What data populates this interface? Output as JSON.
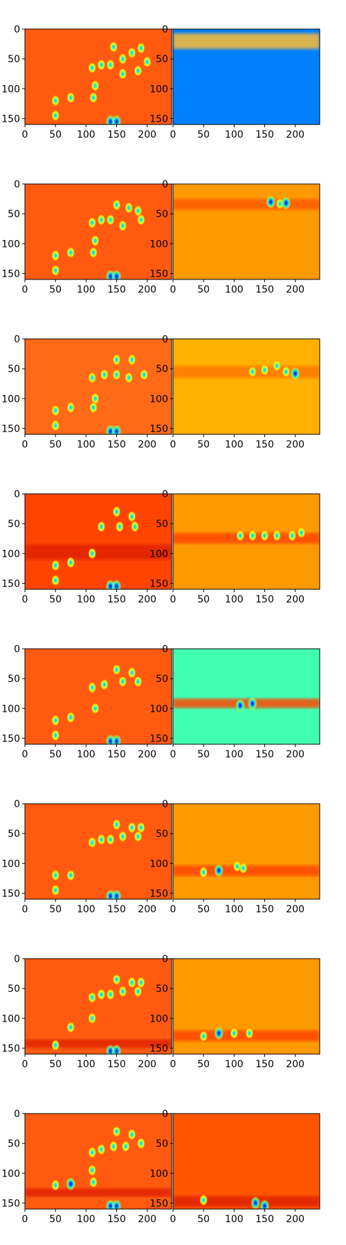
{
  "chart_data": {
    "type": "heatmap",
    "layout": "8 rows x 2 columns of image panels",
    "colormap": "jet",
    "grid": false,
    "xlim": [
      0,
      240
    ],
    "ylim": [
      160,
      0
    ],
    "x_ticks": [
      0,
      50,
      100,
      150,
      200
    ],
    "y_ticks": [
      0,
      50,
      100,
      150
    ],
    "panels": [
      {
        "row": 0,
        "col": 0,
        "background": "#ff5a10",
        "spots": [
          [
            145,
            30,
            1
          ],
          [
            160,
            50,
            1
          ],
          [
            175,
            40,
            1
          ],
          [
            190,
            32,
            1
          ],
          [
            200,
            55,
            1
          ],
          [
            110,
            65,
            1
          ],
          [
            125,
            60,
            1
          ],
          [
            140,
            60,
            1
          ],
          [
            160,
            75,
            1
          ],
          [
            185,
            70,
            1
          ],
          [
            115,
            95,
            1
          ],
          [
            112,
            115,
            1
          ],
          [
            75,
            115,
            1
          ],
          [
            50,
            120,
            1
          ],
          [
            50,
            145,
            1
          ],
          [
            140,
            155,
            2
          ],
          [
            150,
            155,
            2
          ]
        ],
        "bands": []
      },
      {
        "row": 0,
        "col": 1,
        "background": "#0080ff",
        "spots": [],
        "bands": [
          {
            "y": 12,
            "h": 26,
            "color": "#ffbb33"
          }
        ]
      },
      {
        "row": 1,
        "col": 0,
        "background": "#ff5a10",
        "spots": [
          [
            150,
            35,
            1
          ],
          [
            170,
            40,
            1
          ],
          [
            185,
            45,
            1
          ],
          [
            110,
            65,
            1
          ],
          [
            125,
            60,
            1
          ],
          [
            140,
            60,
            1
          ],
          [
            160,
            70,
            1
          ],
          [
            190,
            60,
            1
          ],
          [
            115,
            95,
            1
          ],
          [
            112,
            115,
            1
          ],
          [
            75,
            115,
            1
          ],
          [
            50,
            120,
            1
          ],
          [
            50,
            145,
            1
          ],
          [
            140,
            155,
            2
          ],
          [
            150,
            155,
            2
          ]
        ],
        "bands": []
      },
      {
        "row": 1,
        "col": 1,
        "background": "#ff9900",
        "spots": [
          [
            160,
            30,
            2
          ],
          [
            175,
            33,
            1
          ],
          [
            185,
            32,
            2
          ]
        ],
        "bands": [
          {
            "y": 30,
            "h": 18,
            "color": "#ff5a00"
          }
        ]
      },
      {
        "row": 2,
        "col": 0,
        "background": "#ff6a18",
        "spots": [
          [
            150,
            35,
            1
          ],
          [
            175,
            35,
            1
          ],
          [
            110,
            65,
            1
          ],
          [
            130,
            60,
            1
          ],
          [
            150,
            60,
            1
          ],
          [
            170,
            65,
            1
          ],
          [
            195,
            60,
            1
          ],
          [
            115,
            100,
            1
          ],
          [
            112,
            115,
            1
          ],
          [
            75,
            115,
            1
          ],
          [
            50,
            120,
            1
          ],
          [
            50,
            145,
            1
          ],
          [
            140,
            155,
            2
          ],
          [
            150,
            155,
            2
          ]
        ],
        "bands": []
      },
      {
        "row": 2,
        "col": 1,
        "background": "#ffb000",
        "spots": [
          [
            130,
            55,
            1
          ],
          [
            150,
            52,
            1
          ],
          [
            170,
            45,
            1
          ],
          [
            185,
            55,
            1
          ],
          [
            200,
            58,
            2
          ]
        ],
        "bands": [
          {
            "y": 50,
            "h": 20,
            "color": "#ff7700"
          }
        ]
      },
      {
        "row": 3,
        "col": 0,
        "background": "#ff4400",
        "spots": [
          [
            150,
            30,
            1
          ],
          [
            175,
            38,
            1
          ],
          [
            125,
            55,
            1
          ],
          [
            155,
            55,
            1
          ],
          [
            180,
            55,
            1
          ],
          [
            110,
            100,
            1
          ],
          [
            75,
            115,
            1
          ],
          [
            50,
            120,
            1
          ],
          [
            50,
            145,
            1
          ],
          [
            140,
            155,
            2
          ],
          [
            150,
            155,
            2
          ]
        ],
        "bands": [
          {
            "y": 90,
            "h": 25,
            "color": "#e02000"
          }
        ]
      },
      {
        "row": 3,
        "col": 1,
        "background": "#ff9900",
        "spots": [
          [
            110,
            70,
            1
          ],
          [
            130,
            70,
            1
          ],
          [
            150,
            70,
            1
          ],
          [
            170,
            70,
            1
          ],
          [
            195,
            70,
            1
          ],
          [
            210,
            65,
            1
          ]
        ],
        "bands": [
          {
            "y": 70,
            "h": 18,
            "color": "#ff4400"
          }
        ]
      },
      {
        "row": 4,
        "col": 0,
        "background": "#ff5a10",
        "spots": [
          [
            150,
            35,
            1
          ],
          [
            175,
            40,
            1
          ],
          [
            130,
            60,
            1
          ],
          [
            160,
            55,
            1
          ],
          [
            185,
            55,
            1
          ],
          [
            110,
            65,
            1
          ],
          [
            115,
            100,
            1
          ],
          [
            75,
            115,
            1
          ],
          [
            50,
            120,
            1
          ],
          [
            50,
            145,
            1
          ],
          [
            140,
            155,
            2
          ],
          [
            150,
            155,
            2
          ]
        ],
        "bands": []
      },
      {
        "row": 4,
        "col": 1,
        "background": "#40ffb0",
        "spots": [
          [
            110,
            95,
            2
          ],
          [
            130,
            92,
            2
          ]
        ],
        "bands": [
          {
            "y": 88,
            "h": 16,
            "color": "#ff4400"
          }
        ]
      },
      {
        "row": 5,
        "col": 0,
        "background": "#ff5a10",
        "spots": [
          [
            150,
            35,
            1
          ],
          [
            175,
            40,
            1
          ],
          [
            190,
            40,
            1
          ],
          [
            125,
            60,
            1
          ],
          [
            140,
            60,
            1
          ],
          [
            160,
            55,
            1
          ],
          [
            185,
            55,
            1
          ],
          [
            110,
            65,
            1
          ],
          [
            75,
            120,
            1
          ],
          [
            50,
            120,
            1
          ],
          [
            50,
            145,
            1
          ],
          [
            140,
            155,
            2
          ],
          [
            150,
            155,
            2
          ]
        ],
        "bands": []
      },
      {
        "row": 5,
        "col": 1,
        "background": "#ff9900",
        "spots": [
          [
            50,
            115,
            1
          ],
          [
            75,
            112,
            2
          ],
          [
            105,
            105,
            1
          ],
          [
            115,
            108,
            1
          ]
        ],
        "bands": [
          {
            "y": 108,
            "h": 18,
            "color": "#ff4400"
          }
        ]
      },
      {
        "row": 6,
        "col": 0,
        "background": "#ff5a10",
        "spots": [
          [
            150,
            35,
            1
          ],
          [
            175,
            40,
            1
          ],
          [
            190,
            40,
            1
          ],
          [
            110,
            65,
            1
          ],
          [
            125,
            60,
            1
          ],
          [
            140,
            60,
            1
          ],
          [
            160,
            55,
            1
          ],
          [
            185,
            55,
            1
          ],
          [
            110,
            100,
            1
          ],
          [
            75,
            115,
            1
          ],
          [
            50,
            145,
            1
          ],
          [
            140,
            155,
            2
          ],
          [
            150,
            155,
            2
          ]
        ],
        "bands": [
          {
            "y": 140,
            "h": 14,
            "color": "#e02000"
          }
        ]
      },
      {
        "row": 6,
        "col": 1,
        "background": "#ff9900",
        "spots": [
          [
            50,
            130,
            1
          ],
          [
            75,
            125,
            2
          ],
          [
            100,
            125,
            1
          ],
          [
            125,
            125,
            1
          ]
        ],
        "bands": [
          {
            "y": 125,
            "h": 18,
            "color": "#ff4400"
          }
        ]
      },
      {
        "row": 7,
        "col": 0,
        "background": "#ff5a10",
        "spots": [
          [
            150,
            30,
            1
          ],
          [
            175,
            35,
            1
          ],
          [
            110,
            65,
            1
          ],
          [
            125,
            60,
            1
          ],
          [
            145,
            55,
            1
          ],
          [
            165,
            55,
            1
          ],
          [
            190,
            50,
            1
          ],
          [
            110,
            95,
            1
          ],
          [
            112,
            115,
            1
          ],
          [
            75,
            118,
            2
          ],
          [
            50,
            120,
            1
          ],
          [
            140,
            155,
            2
          ],
          [
            150,
            155,
            2
          ]
        ],
        "bands": [
          {
            "y": 130,
            "h": 14,
            "color": "#e02000"
          }
        ]
      },
      {
        "row": 7,
        "col": 1,
        "background": "#ff5500",
        "spots": [
          [
            50,
            145,
            1
          ],
          [
            135,
            150,
            2
          ],
          [
            150,
            155,
            2
          ]
        ],
        "bands": [
          {
            "y": 143,
            "h": 18,
            "color": "#e02000"
          }
        ]
      }
    ]
  }
}
